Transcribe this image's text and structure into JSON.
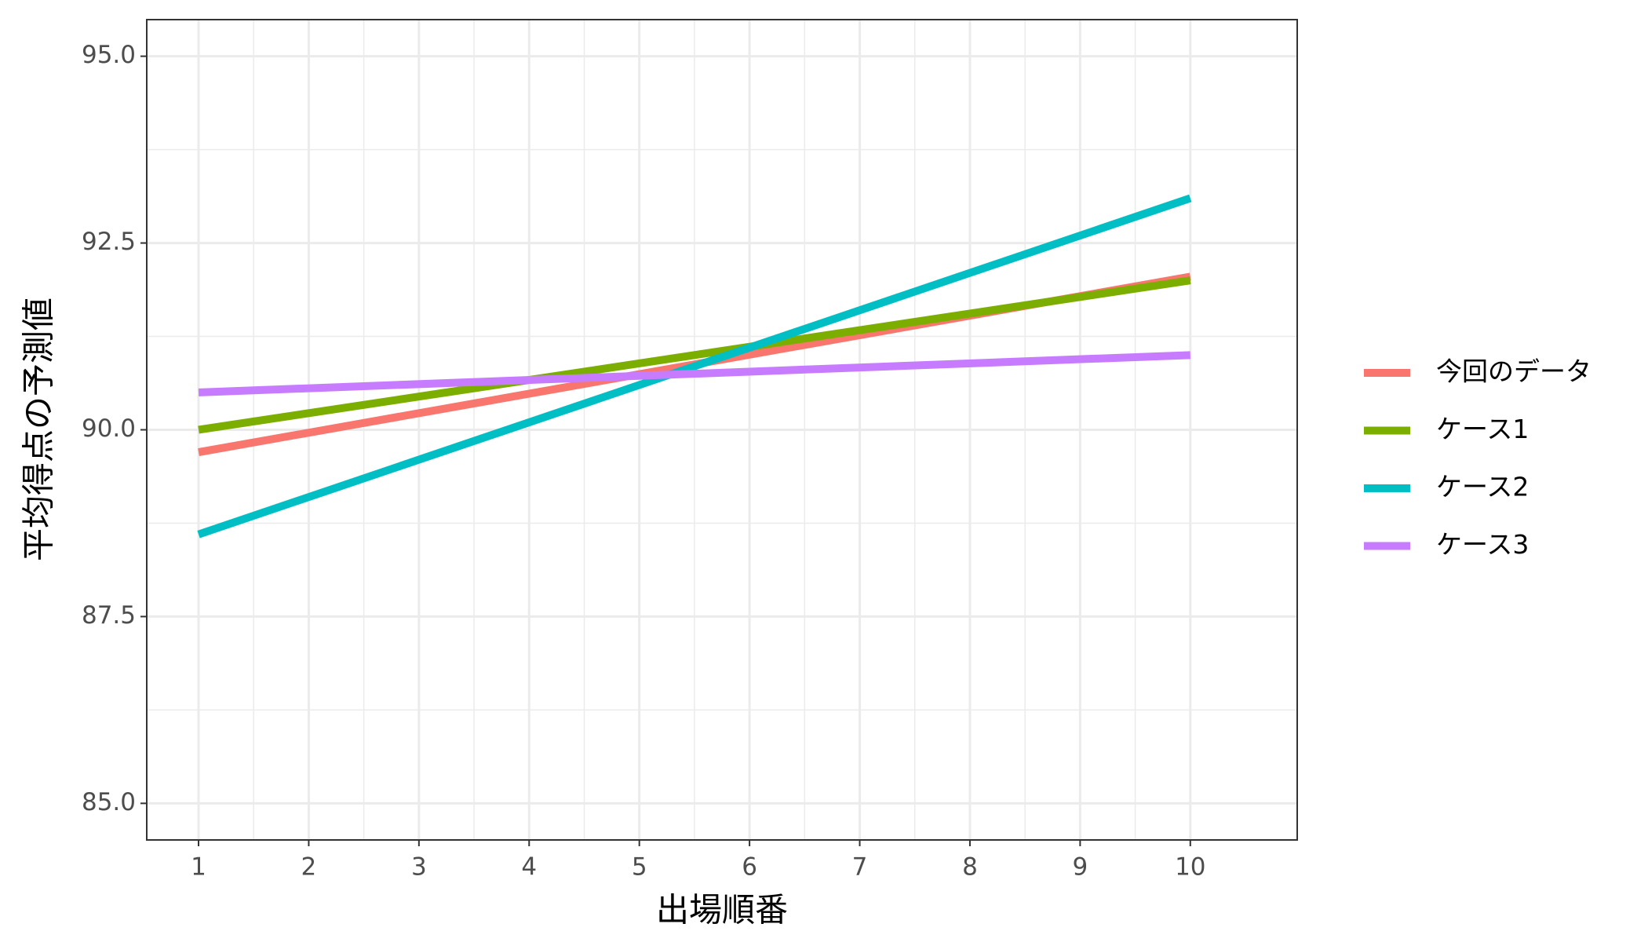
{
  "chart_data": {
    "type": "line",
    "x_label": "出場順番",
    "y_label": "平均得点の予測値",
    "x": [
      1,
      10
    ],
    "series": [
      {
        "name": "今回のデータ",
        "color": "#F8766D",
        "values": [
          89.7,
          92.05
        ]
      },
      {
        "name": "ケース1",
        "color": "#7CAE00",
        "values": [
          90.0,
          92.0
        ]
      },
      {
        "name": "ケース2",
        "color": "#00BFC4",
        "values": [
          88.6,
          93.1
        ]
      },
      {
        "name": "ケース3",
        "color": "#C77CFF",
        "values": [
          90.5,
          91.0
        ]
      }
    ],
    "xlim": [
      0.53,
      10.97
    ],
    "xticks": [
      1,
      2,
      3,
      4,
      5,
      6,
      7,
      8,
      9,
      10
    ],
    "ylim": [
      84.51,
      95.49
    ],
    "yticks": [
      {
        "value": 85,
        "label": "85.0"
      },
      87.5,
      {
        "value": 90,
        "label": "90.0"
      },
      92.5,
      {
        "value": 95,
        "label": "95.0"
      }
    ],
    "grid": true,
    "legend": "right"
  }
}
